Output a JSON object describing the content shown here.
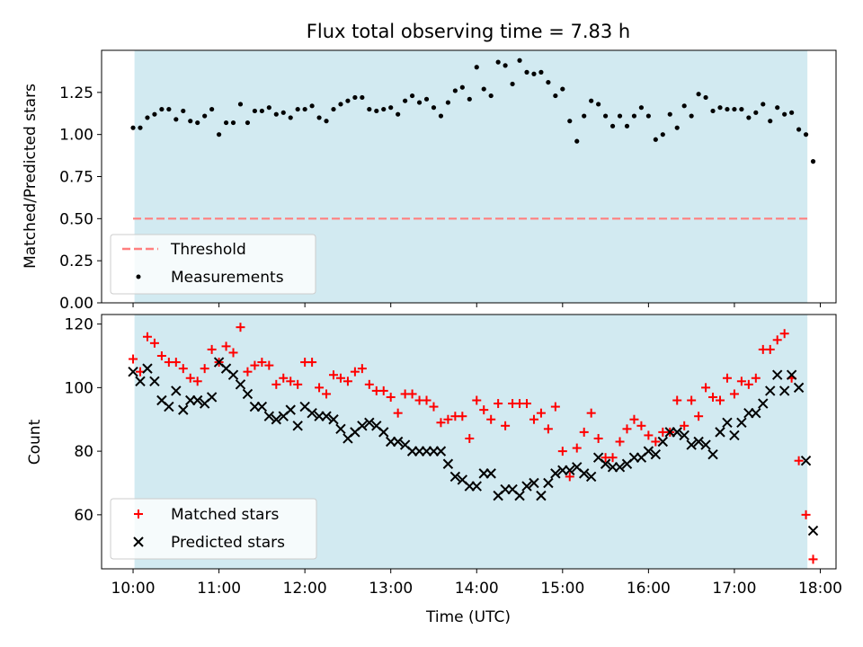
{
  "colors": {
    "observing_band": "#add8e6",
    "threshold": "#ff7f7f",
    "measurements": "#000000",
    "matched": "#ff0000",
    "predicted": "#000000"
  },
  "chart_data": [
    {
      "type": "scatter",
      "title": "Flux total observing time = 7.83 h",
      "xlabel": "",
      "ylabel": "Matched/Predicted stars",
      "xlim": [
        "09:38",
        "18:11"
      ],
      "ylim": [
        0,
        1.5
      ],
      "yticks": [
        "0.00",
        "0.25",
        "0.50",
        "0.75",
        "1.00",
        "1.25"
      ],
      "observing_window": [
        "10:01",
        "17:51"
      ],
      "legend_position": "lower-left",
      "series": [
        {
          "name": "Threshold",
          "kind": "dashed-line",
          "x": [
            "10:00",
            "17:51"
          ],
          "y": [
            0.5,
            0.5
          ]
        },
        {
          "name": "Measurements",
          "kind": "dots",
          "x": [
            "10:00",
            "10:05",
            "10:10",
            "10:15",
            "10:20",
            "10:25",
            "10:30",
            "10:35",
            "10:40",
            "10:45",
            "10:50",
            "10:55",
            "11:00",
            "11:05",
            "11:10",
            "11:15",
            "11:20",
            "11:25",
            "11:30",
            "11:35",
            "11:40",
            "11:45",
            "11:50",
            "11:55",
            "12:00",
            "12:05",
            "12:10",
            "12:15",
            "12:20",
            "12:25",
            "12:30",
            "12:35",
            "12:40",
            "12:45",
            "12:50",
            "12:55",
            "13:00",
            "13:05",
            "13:10",
            "13:15",
            "13:20",
            "13:25",
            "13:30",
            "13:35",
            "13:40",
            "13:45",
            "13:50",
            "13:55",
            "14:00",
            "14:05",
            "14:10",
            "14:15",
            "14:20",
            "14:25",
            "14:30",
            "14:35",
            "14:40",
            "14:45",
            "14:50",
            "14:55",
            "15:00",
            "15:05",
            "15:10",
            "15:15",
            "15:20",
            "15:25",
            "15:30",
            "15:35",
            "15:40",
            "15:45",
            "15:50",
            "15:55",
            "16:00",
            "16:05",
            "16:10",
            "16:15",
            "16:20",
            "16:25",
            "16:30",
            "16:35",
            "16:40",
            "16:45",
            "16:50",
            "16:55",
            "17:00",
            "17:05",
            "17:10",
            "17:15",
            "17:20",
            "17:25",
            "17:30",
            "17:35",
            "17:40",
            "17:45",
            "17:50",
            "17:55"
          ],
          "y": [
            1.04,
            1.04,
            1.1,
            1.12,
            1.15,
            1.15,
            1.09,
            1.14,
            1.08,
            1.07,
            1.11,
            1.15,
            1.0,
            1.07,
            1.07,
            1.18,
            1.07,
            1.14,
            1.14,
            1.16,
            1.12,
            1.13,
            1.1,
            1.15,
            1.15,
            1.17,
            1.1,
            1.08,
            1.15,
            1.18,
            1.2,
            1.22,
            1.22,
            1.15,
            1.14,
            1.15,
            1.16,
            1.12,
            1.2,
            1.23,
            1.19,
            1.21,
            1.16,
            1.11,
            1.19,
            1.26,
            1.28,
            1.21,
            1.4,
            1.27,
            1.23,
            1.43,
            1.41,
            1.3,
            1.44,
            1.37,
            1.36,
            1.37,
            1.31,
            1.23,
            1.27,
            1.08,
            0.96,
            1.11,
            1.2,
            1.18,
            1.11,
            1.05,
            1.11,
            1.05,
            1.11,
            1.16,
            1.11,
            0.97,
            1.0,
            1.12,
            1.04,
            1.17,
            1.11,
            1.24,
            1.22,
            1.14,
            1.16,
            1.15,
            1.15,
            1.15,
            1.1,
            1.13,
            1.18,
            1.08,
            1.16,
            1.12,
            1.13,
            1.03,
            1.0,
            0.84
          ]
        }
      ]
    },
    {
      "type": "scatter",
      "title": "",
      "xlabel": "Time (UTC)",
      "ylabel": "Count",
      "xlim": [
        "09:38",
        "18:11"
      ],
      "ylim": [
        43,
        123
      ],
      "yticks": [
        "60",
        "80",
        "100",
        "120"
      ],
      "xticks": [
        "10:00",
        "11:00",
        "12:00",
        "13:00",
        "14:00",
        "15:00",
        "16:00",
        "17:00",
        "18:00"
      ],
      "observing_window": [
        "10:01",
        "17:51"
      ],
      "legend_position": "lower-left",
      "series": [
        {
          "name": "Matched stars",
          "marker": "plus",
          "x": [
            "10:00",
            "10:05",
            "10:10",
            "10:15",
            "10:20",
            "10:25",
            "10:30",
            "10:35",
            "10:40",
            "10:45",
            "10:50",
            "10:55",
            "11:00",
            "11:05",
            "11:10",
            "11:15",
            "11:20",
            "11:25",
            "11:30",
            "11:35",
            "11:40",
            "11:45",
            "11:50",
            "11:55",
            "12:00",
            "12:05",
            "12:10",
            "12:15",
            "12:20",
            "12:25",
            "12:30",
            "12:35",
            "12:40",
            "12:45",
            "12:50",
            "12:55",
            "13:00",
            "13:05",
            "13:10",
            "13:15",
            "13:20",
            "13:25",
            "13:30",
            "13:35",
            "13:40",
            "13:45",
            "13:50",
            "13:55",
            "14:00",
            "14:05",
            "14:10",
            "14:15",
            "14:20",
            "14:25",
            "14:30",
            "14:35",
            "14:40",
            "14:45",
            "14:50",
            "14:55",
            "15:00",
            "15:05",
            "15:10",
            "15:15",
            "15:20",
            "15:25",
            "15:30",
            "15:35",
            "15:40",
            "15:45",
            "15:50",
            "15:55",
            "16:00",
            "16:05",
            "16:10",
            "16:15",
            "16:20",
            "16:25",
            "16:30",
            "16:35",
            "16:40",
            "16:45",
            "16:50",
            "16:55",
            "17:00",
            "17:05",
            "17:10",
            "17:15",
            "17:20",
            "17:25",
            "17:30",
            "17:35",
            "17:40",
            "17:45",
            "17:50",
            "17:55"
          ],
          "y": [
            109,
            105,
            116,
            114,
            110,
            108,
            108,
            106,
            103,
            102,
            106,
            112,
            108,
            113,
            111,
            119,
            105,
            107,
            108,
            107,
            101,
            103,
            102,
            101,
            108,
            108,
            100,
            98,
            104,
            103,
            102,
            105,
            106,
            101,
            99,
            99,
            97,
            92,
            98,
            98,
            96,
            96,
            94,
            89,
            90,
            91,
            91,
            84,
            96,
            93,
            90,
            95,
            88,
            95,
            95,
            95,
            90,
            92,
            87,
            94,
            80,
            72,
            81,
            86,
            92,
            84,
            78,
            78,
            83,
            87,
            90,
            88,
            85,
            83,
            86,
            86,
            96,
            88,
            96,
            91,
            100,
            97,
            96,
            103,
            98,
            102,
            101,
            103,
            112,
            112,
            115,
            117,
            103,
            77,
            60,
            46
          ]
        },
        {
          "name": "Predicted stars",
          "marker": "cross",
          "x": [
            "10:00",
            "10:05",
            "10:10",
            "10:15",
            "10:20",
            "10:25",
            "10:30",
            "10:35",
            "10:40",
            "10:45",
            "10:50",
            "10:55",
            "11:00",
            "11:05",
            "11:10",
            "11:15",
            "11:20",
            "11:25",
            "11:30",
            "11:35",
            "11:40",
            "11:45",
            "11:50",
            "11:55",
            "12:00",
            "12:05",
            "12:10",
            "12:15",
            "12:20",
            "12:25",
            "12:30",
            "12:35",
            "12:40",
            "12:45",
            "12:50",
            "12:55",
            "13:00",
            "13:05",
            "13:10",
            "13:15",
            "13:20",
            "13:25",
            "13:30",
            "13:35",
            "13:40",
            "13:45",
            "13:50",
            "13:55",
            "14:00",
            "14:05",
            "14:10",
            "14:15",
            "14:20",
            "14:25",
            "14:30",
            "14:35",
            "14:40",
            "14:45",
            "14:50",
            "14:55",
            "15:00",
            "15:05",
            "15:10",
            "15:15",
            "15:20",
            "15:25",
            "15:30",
            "15:35",
            "15:40",
            "15:45",
            "15:50",
            "15:55",
            "16:00",
            "16:05",
            "16:10",
            "16:15",
            "16:20",
            "16:25",
            "16:30",
            "16:35",
            "16:40",
            "16:45",
            "16:50",
            "16:55",
            "17:00",
            "17:05",
            "17:10",
            "17:15",
            "17:20",
            "17:25",
            "17:30",
            "17:35",
            "17:40",
            "17:45",
            "17:50",
            "17:55"
          ],
          "y": [
            105,
            102,
            106,
            102,
            96,
            94,
            99,
            93,
            96,
            96,
            95,
            97,
            108,
            106,
            104,
            101,
            98,
            94,
            94,
            91,
            90,
            91,
            93,
            88,
            94,
            92,
            91,
            91,
            90,
            87,
            84,
            86,
            88,
            89,
            88,
            86,
            83,
            83,
            82,
            80,
            80,
            80,
            80,
            80,
            76,
            72,
            71,
            69,
            69,
            73,
            73,
            66,
            68,
            68,
            66,
            69,
            70,
            66,
            70,
            73,
            74,
            74,
            75,
            73,
            72,
            78,
            76,
            75,
            75,
            76,
            78,
            78,
            80,
            79,
            83,
            86,
            86,
            85,
            82,
            83,
            82,
            79,
            86,
            89,
            85,
            89,
            92,
            92,
            95,
            99,
            104,
            99,
            104,
            100,
            77,
            55
          ]
        }
      ]
    }
  ]
}
